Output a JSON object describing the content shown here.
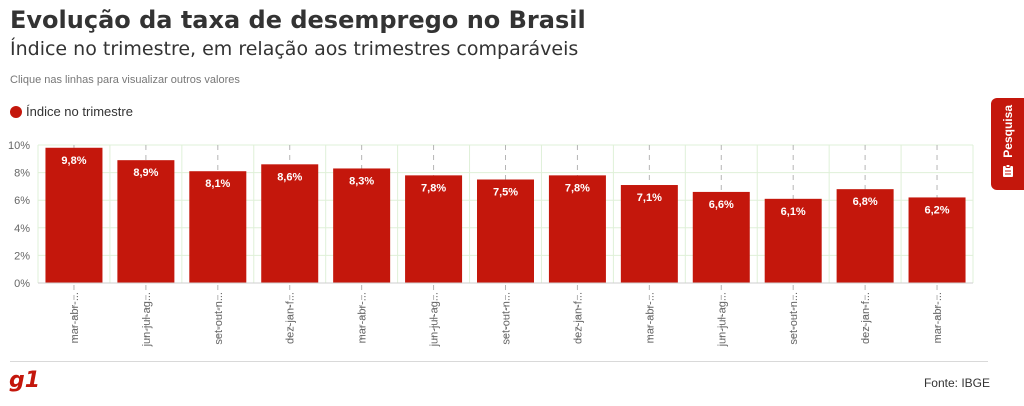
{
  "header": {
    "title": "Evolução da taxa de desemprego no Brasil",
    "subtitle": "Índice no trimestre, em relação aos trimestres comparáveis",
    "hint": "Clique nas linhas para visualizar outros valores"
  },
  "legend": {
    "label": "Índice no trimestre",
    "color": "#c4170c"
  },
  "footer": {
    "logo": "g1",
    "source": "Fonte: IBGE"
  },
  "side_tab": {
    "label": "Pesquisa",
    "icon": "clipboard-icon",
    "color": "#c4170c"
  },
  "colors": {
    "bar": "#c4170c",
    "grid": "#dff0d8",
    "axis_text": "#666666"
  },
  "chart_data": {
    "type": "bar",
    "categories": [
      "mar-abr-...",
      "jun-jul-ag...",
      "set-out-n...",
      "dez-jan-f...",
      "mar-abr-...",
      "jun-jul-ag...",
      "set-out-n...",
      "dez-jan-f...",
      "mar-abr-...",
      "jun-jul-ag...",
      "set-out-n...",
      "dez-jan-f...",
      "mar-abr-..."
    ],
    "series": [
      {
        "name": "Índice no trimestre",
        "values": [
          9.8,
          8.9,
          8.1,
          8.6,
          8.3,
          7.8,
          7.5,
          7.8,
          7.1,
          6.6,
          6.1,
          6.8,
          6.2
        ]
      }
    ],
    "value_labels": [
      "9,8%",
      "8,9%",
      "8,1%",
      "8,6%",
      "8,3%",
      "7,8%",
      "7,5%",
      "7,8%",
      "7,1%",
      "6,6%",
      "6,1%",
      "6,8%",
      "6,2%"
    ],
    "y_ticks": [
      0,
      2,
      4,
      6,
      8,
      10
    ],
    "y_tick_labels": [
      "0%",
      "2%",
      "4%",
      "6%",
      "8%",
      "10%"
    ],
    "ylim": [
      0,
      10
    ],
    "grid": true,
    "legend_position": "top-left"
  }
}
